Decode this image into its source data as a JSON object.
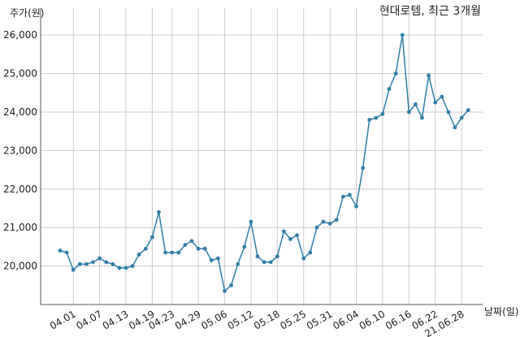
{
  "chart_data": {
    "type": "line",
    "title": "현대로템, 최근 3개월",
    "xlabel": "날짜(일)",
    "ylabel": "주가(원)",
    "ylim": [
      19000,
      26700
    ],
    "yticks": [
      20000,
      21000,
      22000,
      23000,
      24000,
      25000,
      26000
    ],
    "ytick_labels": [
      "20,000",
      "21,000",
      "22,000",
      "23,000",
      "24,000",
      "25,000",
      "26,000"
    ],
    "xtick_labels": [
      "04.01",
      "04.07",
      "04.13",
      "04.19",
      "04.23",
      "04.29",
      "05.06",
      "05.12",
      "05.18",
      "05.25",
      "05.31",
      "06.04",
      "06.10",
      "06.16",
      "06.22",
      "21.06.28"
    ],
    "xtick_indices": [
      2,
      6,
      10,
      14,
      17,
      21,
      25,
      29,
      33,
      37,
      41,
      45,
      49,
      53,
      57,
      61
    ],
    "grid": true,
    "line_color": "#2f7ea8",
    "series": [
      {
        "name": "",
        "values": [
          20400,
          20350,
          19900,
          20050,
          20050,
          20100,
          20200,
          20100,
          20050,
          19950,
          19950,
          20000,
          20300,
          20450,
          20750,
          21400,
          20350,
          20350,
          20350,
          20550,
          20650,
          20450,
          20450,
          20150,
          20200,
          19350,
          19500,
          20050,
          20500,
          21150,
          20250,
          20100,
          20100,
          20250,
          20900,
          20700,
          20800,
          20200,
          20350,
          21000,
          21150,
          21100,
          21200,
          21800,
          21850,
          21550,
          22550,
          23800,
          23850,
          23950,
          24600,
          25000,
          26000,
          24000,
          24200,
          23850,
          24950,
          24250,
          24400,
          24000,
          23600,
          23850,
          24050
        ]
      }
    ]
  }
}
